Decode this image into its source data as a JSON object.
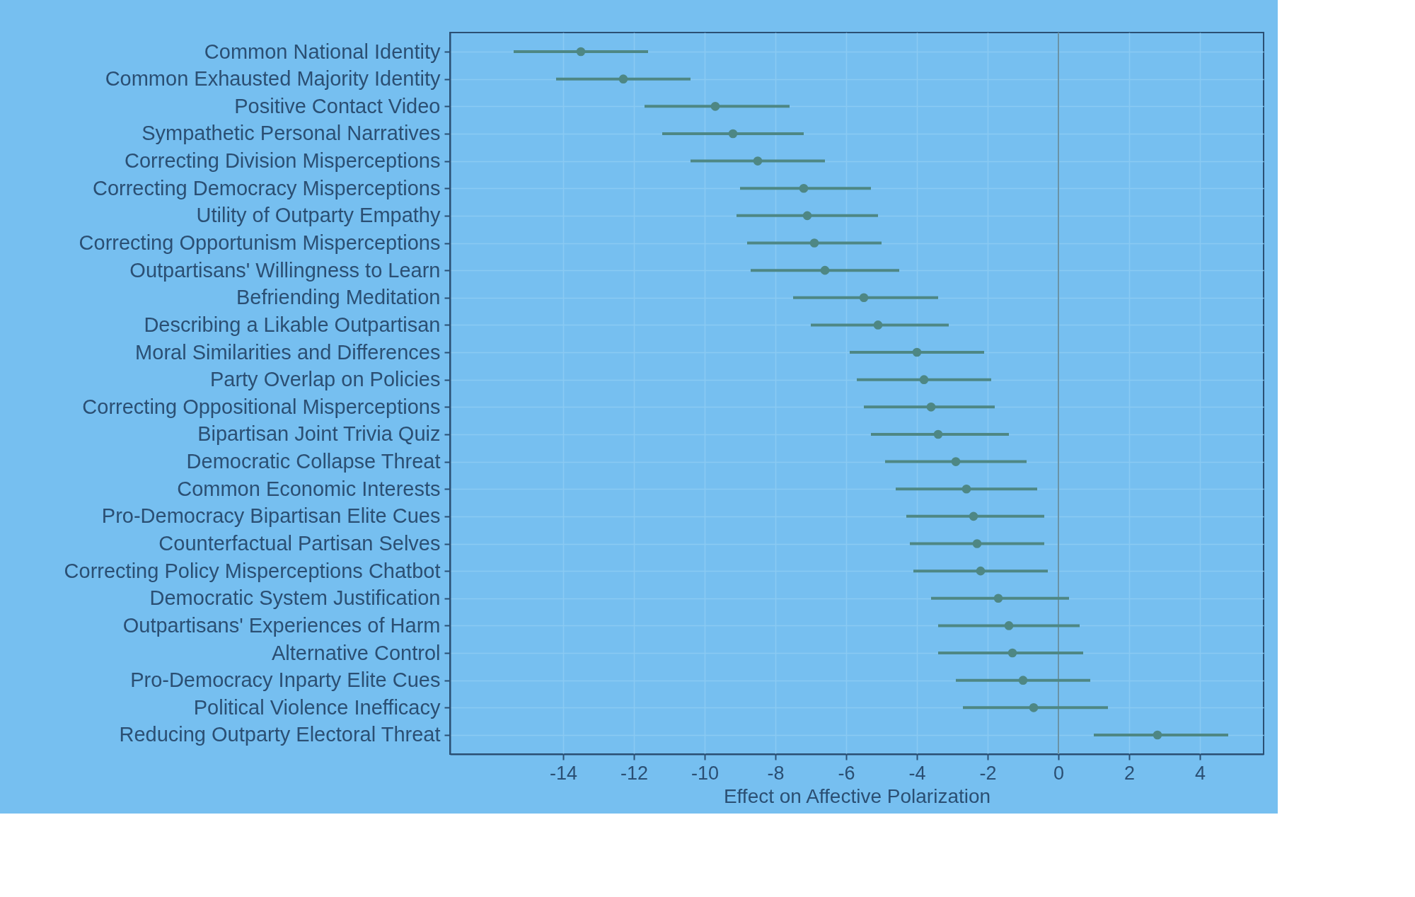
{
  "chart_data": {
    "type": "scatter",
    "orientation": "horizontal",
    "categories": [
      "Common National Identity",
      "Common Exhausted Majority Identity",
      "Positive Contact Video",
      "Sympathetic Personal Narratives",
      "Correcting Division Misperceptions",
      "Correcting Democracy Misperceptions",
      "Utility of Outparty Empathy",
      "Correcting Opportunism Misperceptions",
      "Outpartisans' Willingness to Learn",
      "Befriending Meditation",
      "Describing a Likable Outpartisan",
      "Moral Similarities and Differences",
      "Party Overlap on Policies",
      "Correcting Oppositional Misperceptions",
      "Bipartisan Joint Trivia Quiz",
      "Democratic Collapse Threat",
      "Common Economic Interests",
      "Pro-Democracy Bipartisan Elite Cues",
      "Counterfactual Partisan Selves",
      "Correcting Policy Misperceptions Chatbot",
      "Democratic System Justification",
      "Outpartisans' Experiences of Harm",
      "Alternative Control",
      "Pro-Democracy Inparty Elite Cues",
      "Political Violence Inefficacy",
      "Reducing Outparty Electoral Threat"
    ],
    "series": [
      {
        "color": "#4e8784",
        "values": [
          -13.5,
          -12.3,
          -9.7,
          -9.2,
          -8.5,
          -7.2,
          -7.1,
          -6.9,
          -6.6,
          -5.5,
          -5.1,
          -4.0,
          -3.8,
          -3.6,
          -3.4,
          -2.9,
          -2.6,
          -2.4,
          -2.3,
          -2.2,
          -1.7,
          -1.4,
          -1.3,
          -1.0,
          -0.7,
          2.8
        ],
        "errors": [
          [
            -15.4,
            -11.6
          ],
          [
            -14.2,
            -10.4
          ],
          [
            -11.7,
            -7.6
          ],
          [
            -11.2,
            -7.2
          ],
          [
            -10.4,
            -6.6
          ],
          [
            -9.0,
            -5.3
          ],
          [
            -9.1,
            -5.1
          ],
          [
            -8.8,
            -5.0
          ],
          [
            -8.7,
            -4.5
          ],
          [
            -7.5,
            -3.4
          ],
          [
            -7.0,
            -3.1
          ],
          [
            -5.9,
            -2.1
          ],
          [
            -5.7,
            -1.9
          ],
          [
            -5.5,
            -1.8
          ],
          [
            -5.3,
            -1.4
          ],
          [
            -4.9,
            -0.9
          ],
          [
            -4.6,
            -0.6
          ],
          [
            -4.3,
            -0.4
          ],
          [
            -4.2,
            -0.4
          ],
          [
            -4.1,
            -0.3
          ],
          [
            -3.6,
            0.3
          ],
          [
            -3.4,
            0.6
          ],
          [
            -3.4,
            0.7
          ],
          [
            -2.9,
            0.9
          ],
          [
            -2.7,
            1.4
          ],
          [
            1.0,
            4.8
          ]
        ]
      }
    ],
    "xlim": [
      -17.2,
      5.8
    ],
    "xticks": [
      -14,
      -12,
      -10,
      -8,
      -6,
      -4,
      -2,
      0,
      2,
      4
    ],
    "xlabel": "Effect on Affective Polarization",
    "ref_lines": [
      {
        "axis": "x",
        "value": 0,
        "color": "#6a93a6"
      }
    ],
    "grid": true,
    "marker": "circle"
  }
}
